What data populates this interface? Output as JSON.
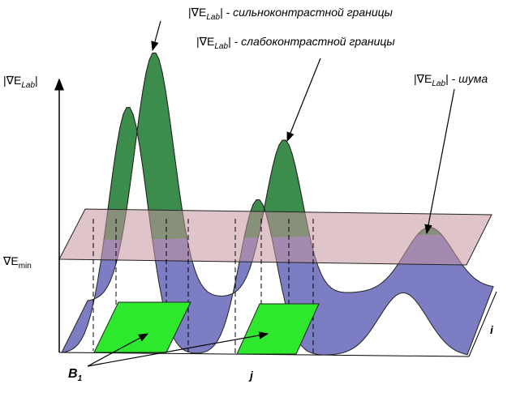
{
  "labels": [
    {
      "prefix": "|∇E",
      "sub": "Lab",
      "suffix": "| - сильноконтрастной границы"
    },
    {
      "prefix": "|∇E",
      "sub": "Lab",
      "suffix": "| - слабоконтрастной границы"
    },
    {
      "prefix": "|∇E",
      "sub": "Lab",
      "suffix": "| - шума"
    }
  ],
  "axis": {
    "prefix": "|∇E",
    "sub": "Lab",
    "suffix": "|"
  },
  "threshold": {
    "symbol": "∇E",
    "sub": "min"
  },
  "region": {
    "symbol": "B",
    "sub": "1"
  },
  "i": "i",
  "j": "j"
}
